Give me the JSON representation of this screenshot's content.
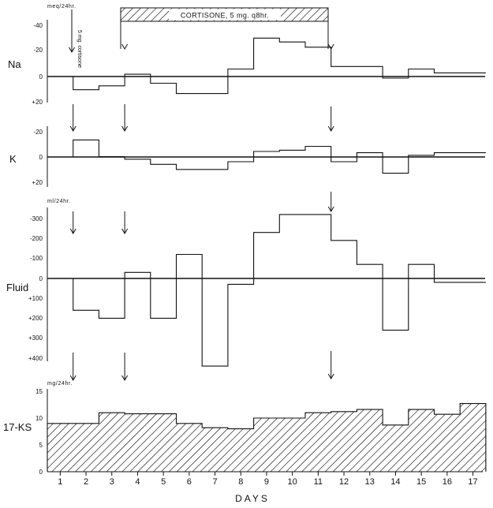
{
  "chart_data": {
    "type": "step",
    "xlabel": "DAYS",
    "x_ticks": [
      "1",
      "2",
      "3",
      "4",
      "5",
      "6",
      "7",
      "8",
      "9",
      "10",
      "11",
      "12",
      "13",
      "14",
      "15",
      "16",
      "17"
    ],
    "treatment_banner": "CORTISONE, 5 mg. q8hr.",
    "initial_dose_label": "5 mg. cortisone",
    "panels": [
      {
        "label": "Na",
        "unit": "meq/24hr.",
        "ylim": [
          20,
          -40
        ],
        "yticks": [
          "-40",
          "-20",
          "0",
          "+20"
        ],
        "ytick_values": [
          -40,
          -20,
          0,
          20
        ],
        "values": [
          10,
          7,
          -2,
          5,
          13,
          13,
          -6,
          -30,
          -27,
          -23,
          -8,
          -8,
          1,
          -6,
          -3,
          -3
        ]
      },
      {
        "label": "K",
        "unit": "",
        "ylim": [
          20,
          -20
        ],
        "yticks": [
          "-20",
          "0",
          "+20"
        ],
        "ytick_values": [
          -20,
          0,
          20
        ],
        "values": [
          -13,
          0,
          2,
          6,
          10,
          10,
          4,
          -4,
          -5,
          -8,
          4,
          -3,
          13,
          -1,
          -3,
          -3
        ]
      },
      {
        "label": "Fluid",
        "unit": "ml/24hr.",
        "ylim": [
          400,
          -350
        ],
        "yticks": [
          "-300",
          "-200",
          "-100",
          "0",
          "+100",
          "+200",
          "+300",
          "+400"
        ],
        "ytick_values": [
          -300,
          -200,
          -100,
          0,
          100,
          200,
          300,
          400
        ],
        "values": [
          160,
          200,
          -30,
          200,
          -120,
          440,
          30,
          -230,
          -320,
          -320,
          -190,
          -70,
          260,
          -70,
          20,
          20
        ]
      },
      {
        "label": "17-KS",
        "unit": "mg/24hr.",
        "ylim": [
          0,
          15
        ],
        "yticks": [
          "0",
          "5",
          "10",
          "15"
        ],
        "ytick_values": [
          0,
          5,
          10,
          15
        ],
        "values": [
          9,
          9,
          11,
          10.8,
          10.8,
          9,
          8.2,
          8,
          10,
          10,
          11,
          11.2,
          11.6,
          8.7,
          11.6,
          10.7,
          12.7
        ]
      }
    ]
  }
}
